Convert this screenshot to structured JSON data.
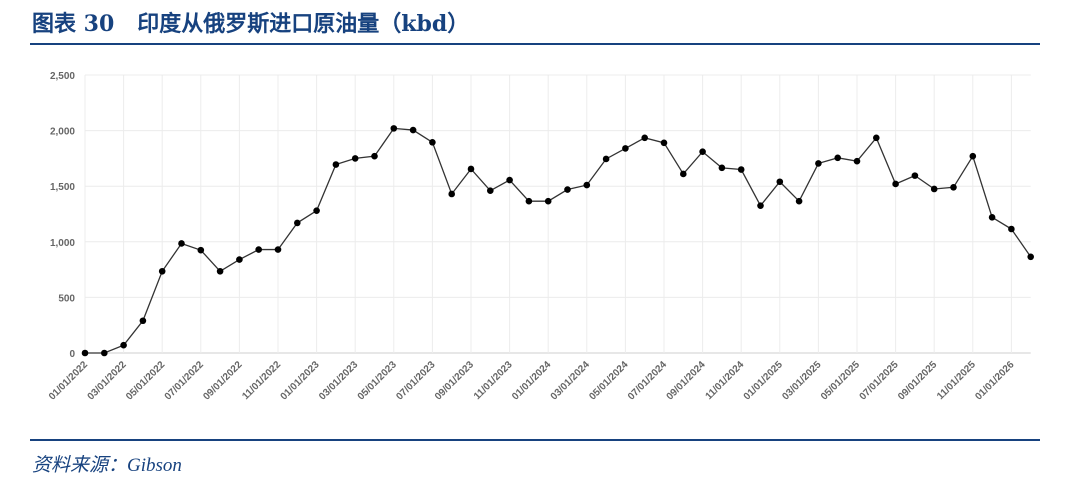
{
  "title": "图表 30   印度从俄罗斯进口原油量（kbd）",
  "source": "资料来源：Gibson",
  "chart_data": {
    "type": "line",
    "title": "",
    "xlabel": "",
    "ylabel": "",
    "ylim": [
      0,
      2500
    ],
    "yticks": [
      "0",
      "500",
      "1,000",
      "1,500",
      "2,000",
      "2,500"
    ],
    "ytick_values": [
      0,
      500,
      1000,
      1500,
      2000,
      2500
    ],
    "xtick_labels": [
      "01/01/2022",
      "03/01/2022",
      "05/01/2022",
      "07/01/2022",
      "09/01/2022",
      "11/01/2022",
      "01/01/2023",
      "03/01/2023",
      "05/01/2023",
      "07/01/2023",
      "09/01/2023",
      "11/01/2023",
      "01/01/2024",
      "03/01/2024",
      "05/01/2024",
      "07/01/2024",
      "09/01/2024",
      "11/01/2024",
      "01/01/2025",
      "03/01/2025",
      "05/01/2025",
      "07/01/2025",
      "09/01/2025",
      "11/01/2025",
      "01/01/2026"
    ],
    "grid": true,
    "line_color": "#333333",
    "marker_color": "#000000",
    "x_start": "2022-01",
    "x_frequency": "monthly",
    "values": [
      0,
      0,
      70,
      290,
      735,
      985,
      925,
      735,
      840,
      930,
      930,
      1170,
      1280,
      1695,
      1750,
      1770,
      2020,
      2005,
      1895,
      1430,
      1655,
      1460,
      1555,
      1365,
      1365,
      1470,
      1510,
      1745,
      1840,
      1935,
      1890,
      1610,
      1810,
      1665,
      1650,
      1325,
      1540,
      1365,
      1705,
      1755,
      1725,
      1935,
      1520,
      1595,
      1475,
      1490,
      1770,
      1220,
      1115,
      865
    ]
  }
}
